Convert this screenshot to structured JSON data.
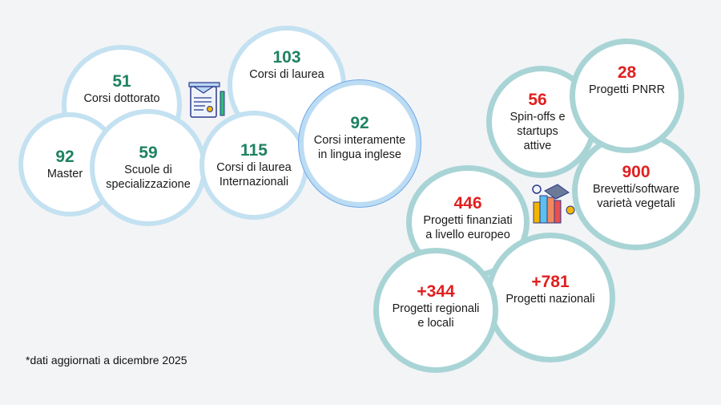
{
  "education": [
    {
      "value": "51",
      "label": "Corsi dottorato"
    },
    {
      "value": "103",
      "label": "Corsi di laurea"
    },
    {
      "value": "92",
      "label": "Master"
    },
    {
      "value": "59",
      "label": "Scuole di\nspecializzazione"
    },
    {
      "value": "115",
      "label": "Corsi di laurea\nInternazionali"
    },
    {
      "value": "92",
      "label": "Corsi interamente\nin lingua inglese"
    }
  ],
  "research": [
    {
      "value": "56",
      "label": "Spin-offs e\nstartups\nattive"
    },
    {
      "value": "28",
      "label": "Progetti PNRR"
    },
    {
      "value": "900",
      "label": "Brevetti/software\nvarietà vegetali"
    },
    {
      "value": "446",
      "label": "Progetti finanziati\na livello europeo"
    },
    {
      "value": "+781",
      "label": "Progetti nazionali"
    },
    {
      "value": "+344",
      "label": "Progetti regionali\ne locali"
    }
  ],
  "footnote": "*dati aggiornati a dicembre 2025",
  "colors": {
    "education_number": "#1e8262",
    "research_number": "#e02020",
    "education_border": "#c3e1f1",
    "research_border": "#a9d4d6",
    "background": "#f3f4f6"
  },
  "icons": [
    "diploma-certificate-icon",
    "books-graduation-cap-icon"
  ]
}
